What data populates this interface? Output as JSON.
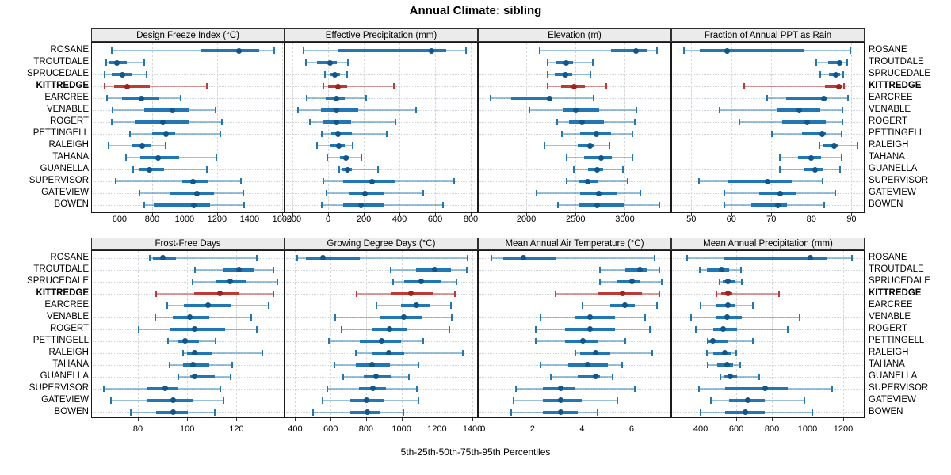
{
  "title": "Annual Climate: sibling",
  "caption": "5th-25th-50th-75th-95th Percentiles",
  "sites": [
    "ROSANE",
    "TROUTDALE",
    "SPRUCEDALE",
    "KITTREDGE",
    "EARCREE",
    "VENABLE",
    "ROGERT",
    "PETTINGELL",
    "RALEIGH",
    "TAHANA",
    "GUANELLA",
    "SUPERVISOR",
    "GATEVIEW",
    "BOWEN"
  ],
  "highlight_site": "KITTREDGE",
  "colors": {
    "series": "#2077b4",
    "series_dark": "#11568a",
    "series_light": "rgba(32,119,180,0.45)",
    "highlight": "#bf3a35",
    "highlight_dark": "#9c231f",
    "highlight_light": "rgba(191,58,53,0.5)",
    "grid": "#d6d6d6",
    "row_guide": "#ccd2d8",
    "strip_bg": "#ebebeb",
    "border": "#1a1a1a"
  },
  "percentile_labels": [
    "5th",
    "25th",
    "50th",
    "75th",
    "95th"
  ],
  "chart_data": {
    "type": "dotplot-intervals",
    "note": "Each site row: [p5, p25, p50, p75, p95] percentiles",
    "panels": [
      {
        "title": "Design Freeze Index (°C)",
        "row": 0,
        "col": 0,
        "xlim": [
          425,
          1615
        ],
        "ticks": [
          600,
          800,
          1000,
          1200,
          1400,
          1600
        ],
        "values": [
          [
            548,
            1095,
            1330,
            1456,
            1545
          ],
          [
            512,
            532,
            578,
            642,
            748
          ],
          [
            504,
            545,
            615,
            667,
            760
          ],
          [
            504,
            561,
            642,
            780,
            1134
          ],
          [
            520,
            610,
            732,
            838,
            973
          ],
          [
            553,
            745,
            922,
            1024,
            1187
          ],
          [
            545,
            686,
            862,
            1024,
            1224
          ],
          [
            659,
            797,
            883,
            935,
            1217
          ],
          [
            529,
            675,
            737,
            789,
            878
          ],
          [
            634,
            724,
            834,
            960,
            1190
          ],
          [
            680,
            719,
            780,
            870,
            1130
          ],
          [
            569,
            980,
            1049,
            1141,
            1341
          ],
          [
            719,
            902,
            1070,
            1176,
            1358
          ],
          [
            745,
            805,
            1054,
            1151,
            1363
          ]
        ]
      },
      {
        "title": "Effective Precipitation (mm)",
        "row": 0,
        "col": 1,
        "xlim": [
          -245,
          840
        ],
        "ticks": [
          -200,
          0,
          200,
          400,
          600,
          800
        ],
        "values": [
          [
            -141,
            52,
            575,
            659,
            770
          ],
          [
            -129,
            -67,
            8,
            44,
            108
          ],
          [
            -22,
            3,
            34,
            62,
            104
          ],
          [
            -30,
            -3,
            52,
            101,
            366
          ],
          [
            -126,
            -19,
            41,
            89,
            210
          ],
          [
            -175,
            -44,
            41,
            163,
            489
          ],
          [
            -108,
            -30,
            41,
            126,
            373
          ],
          [
            -40,
            15,
            49,
            130,
            326
          ],
          [
            -67,
            8,
            56,
            89,
            133
          ],
          [
            -8,
            62,
            96,
            116,
            181
          ],
          [
            56,
            77,
            104,
            130,
            274
          ],
          [
            -32,
            81,
            241,
            373,
            704
          ],
          [
            -12,
            111,
            204,
            311,
            530
          ],
          [
            -41,
            81,
            181,
            311,
            640
          ]
        ]
      },
      {
        "title": "Elevation (m)",
        "row": 0,
        "col": 2,
        "xlim": [
          1510,
          3470
        ],
        "ticks": [
          2000,
          2500,
          3000
        ],
        "values": [
          [
            2131,
            2852,
            3107,
            3220,
            3315
          ],
          [
            2212,
            2293,
            2401,
            2468,
            2669
          ],
          [
            2207,
            2280,
            2387,
            2460,
            2643
          ],
          [
            2212,
            2347,
            2476,
            2589,
            2804
          ],
          [
            1627,
            1836,
            2230,
            2245,
            2675
          ],
          [
            2024,
            2365,
            2494,
            2728,
            3105
          ],
          [
            2306,
            2422,
            2562,
            2782,
            3091
          ],
          [
            2352,
            2535,
            2702,
            2852,
            3067
          ],
          [
            2180,
            2514,
            2637,
            2675,
            2836
          ],
          [
            2401,
            2575,
            2750,
            2857,
            3067
          ],
          [
            2476,
            2621,
            2710,
            2772,
            2970
          ],
          [
            2401,
            2530,
            2611,
            2718,
            3024
          ],
          [
            2099,
            2535,
            2728,
            2911,
            3148
          ],
          [
            2315,
            2522,
            2710,
            2992,
            3341
          ]
        ]
      },
      {
        "title": "Fraction of Annual PPT as Rain",
        "row": 0,
        "col": 3,
        "xlim": [
          45,
          93.3
        ],
        "ticks": [
          50,
          60,
          70,
          80,
          90
        ],
        "values": [
          [
            48,
            52,
            58.8,
            77.9,
            89.6
          ],
          [
            81,
            83.9,
            86.9,
            87.5,
            88.8
          ],
          [
            82,
            84.1,
            85.9,
            86.9,
            87.7
          ],
          [
            63,
            83.3,
            86.7,
            87.3,
            88
          ],
          [
            68.8,
            73.5,
            82.9,
            83.6,
            89
          ],
          [
            56.8,
            71.2,
            76.7,
            82.1,
            87.5
          ],
          [
            61.9,
            72.5,
            78.7,
            83.4,
            87.5
          ],
          [
            69.9,
            77.4,
            82.5,
            83.4,
            87.3
          ],
          [
            81.8,
            82.9,
            85.4,
            86.4,
            91.4
          ],
          [
            71.9,
            76.4,
            79.8,
            82.3,
            87.3
          ],
          [
            72,
            77.9,
            80.7,
            82.7,
            86.9
          ],
          [
            51.8,
            58.8,
            68.8,
            74.9,
            82.7
          ],
          [
            58,
            66.8,
            72.1,
            76.1,
            85.7
          ],
          [
            58,
            64.7,
            71.5,
            73.8,
            83.1
          ]
        ]
      },
      {
        "title": "Frost-Free Days",
        "row": 1,
        "col": 0,
        "xlim": [
          61,
          139.5
        ],
        "ticks": [
          80,
          100,
          120
        ],
        "values": [
          [
            84.4,
            85.8,
            89.9,
            95.1,
            128
          ],
          [
            102.8,
            114,
            120.8,
            126.6,
            134.8
          ],
          [
            101.7,
            111.2,
            117.1,
            123.3,
            136.2
          ],
          [
            87.1,
            102.5,
            112.9,
            120.6,
            134.8
          ],
          [
            91.5,
            98.4,
            108.2,
            117.6,
            132.6
          ],
          [
            86.8,
            93.9,
            100.8,
            108.7,
            125.8
          ],
          [
            80,
            92.9,
            102.8,
            115.1,
            128
          ],
          [
            91.8,
            95.7,
            98.9,
            104.3,
            111.2
          ],
          [
            98.1,
            99.7,
            102.8,
            109.9,
            130.2
          ],
          [
            92.6,
            97.9,
            102.1,
            108.7,
            117.8
          ],
          [
            96.2,
            100.8,
            102.8,
            111,
            117.3
          ],
          [
            65.7,
            83.1,
            90.8,
            96.2,
            113.1
          ],
          [
            68.8,
            83.1,
            93.9,
            102.1,
            114.5
          ],
          [
            76.9,
            87,
            93.9,
            100,
            110.9
          ]
        ]
      },
      {
        "title": "Growing Degree Days (°C)",
        "row": 1,
        "col": 1,
        "xlim": [
          340,
          1431
        ],
        "ticks": [
          400,
          600,
          800,
          1000,
          1200,
          1400
        ],
        "values": [
          [
            408,
            457,
            552,
            762,
            1367
          ],
          [
            934,
            1078,
            1183,
            1274,
            1362
          ],
          [
            946,
            1009,
            1108,
            1219,
            1307
          ],
          [
            743,
            934,
            1048,
            1174,
            1299
          ],
          [
            852,
            994,
            1081,
            1159,
            1276
          ],
          [
            622,
            878,
            1009,
            1111,
            1279
          ],
          [
            657,
            833,
            928,
            1024,
            1264
          ],
          [
            588,
            762,
            883,
            994,
            1119
          ],
          [
            738,
            828,
            923,
            1009,
            1340
          ],
          [
            618,
            738,
            828,
            931,
            1093
          ],
          [
            668,
            783,
            852,
            934,
            1039
          ],
          [
            577,
            758,
            833,
            908,
            1084
          ],
          [
            552,
            708,
            798,
            898,
            1093
          ],
          [
            495,
            708,
            803,
            878,
            1006
          ]
        ]
      },
      {
        "title": "Mean Annual Air Temperature (°C)",
        "row": 1,
        "col": 2,
        "xlim": [
          -0.2,
          7.6
        ],
        "ticks": [
          0,
          2,
          4,
          6
        ],
        "values": [
          [
            0.3,
            0.8,
            1.6,
            2.9,
            6.9
          ],
          [
            4.7,
            5.7,
            6.3,
            6.6,
            7.1
          ],
          [
            4.7,
            5.4,
            6.0,
            6.3,
            7.2
          ],
          [
            2.9,
            4.6,
            5.6,
            6.4,
            7.1
          ],
          [
            4.0,
            5.1,
            5.7,
            6.1,
            7.0
          ],
          [
            2.3,
            3.7,
            4.3,
            5.3,
            6.5
          ],
          [
            2.1,
            3.3,
            4.3,
            5.3,
            6.7
          ],
          [
            2.1,
            3.3,
            4.0,
            4.6,
            5.7
          ],
          [
            3.7,
            3.9,
            4.5,
            5.1,
            6.8
          ],
          [
            2.3,
            3.4,
            4.2,
            5.0,
            5.6
          ],
          [
            2.7,
            3.8,
            4.5,
            4.7,
            5.2
          ],
          [
            1.3,
            2.4,
            3.1,
            3.7,
            6.1
          ],
          [
            1.2,
            2.4,
            3.1,
            4.0,
            5.4
          ],
          [
            1.1,
            2.4,
            3.1,
            3.8,
            4.6
          ]
        ]
      },
      {
        "title": "Mean Annual Precipitation (mm)",
        "row": 1,
        "col": 3,
        "xlim": [
          235,
          1320
        ],
        "ticks": [
          400,
          600,
          800,
          1000,
          1200
        ],
        "values": [
          [
            320,
            530,
            1010,
            1105,
            1245
          ],
          [
            390,
            430,
            515,
            555,
            620
          ],
          [
            500,
            520,
            550,
            585,
            625
          ],
          [
            485,
            510,
            550,
            575,
            835
          ],
          [
            395,
            485,
            550,
            590,
            690
          ],
          [
            340,
            480,
            545,
            625,
            950
          ],
          [
            370,
            465,
            520,
            600,
            885
          ],
          [
            434,
            441,
            464,
            546,
            688
          ],
          [
            431,
            466,
            530,
            570,
            594
          ],
          [
            437,
            490,
            545,
            579,
            619
          ],
          [
            505,
            526,
            564,
            599,
            722
          ],
          [
            387,
            535,
            756,
            885,
            1135
          ],
          [
            452,
            555,
            659,
            756,
            978
          ],
          [
            393,
            535,
            648,
            756,
            1022
          ]
        ]
      }
    ]
  }
}
